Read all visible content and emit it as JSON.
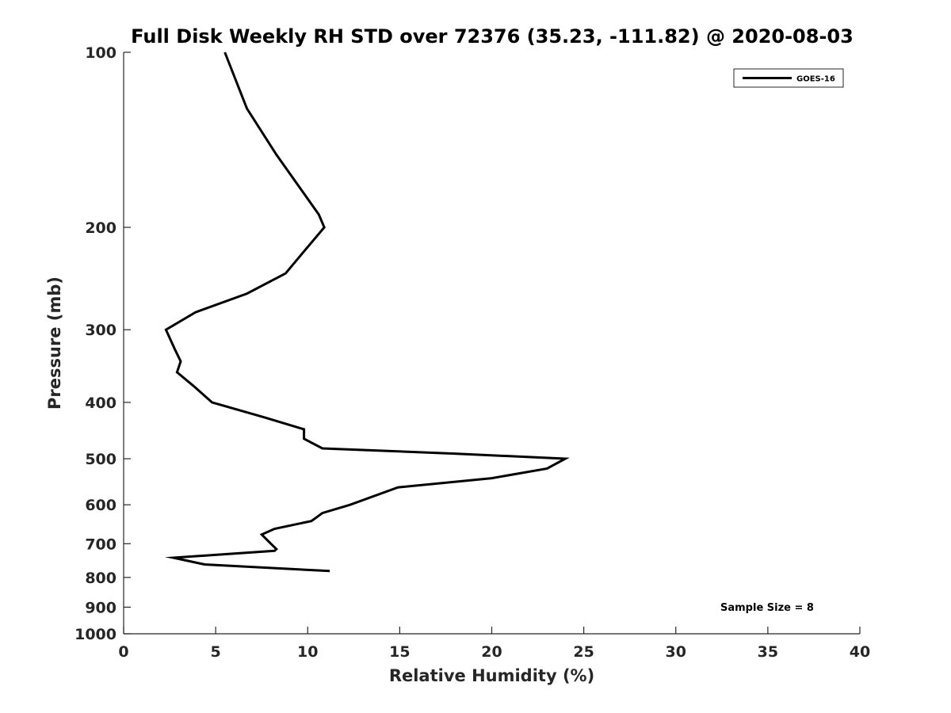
{
  "chart_data": {
    "type": "line",
    "title": "Full Disk Weekly RH STD over 72376 (35.23, -111.82) @ 2020-08-03",
    "xlabel": "Relative Humidity (%)",
    "ylabel": "Pressure (mb)",
    "xlim": [
      0,
      40
    ],
    "ylim": [
      100,
      1000
    ],
    "y_scale": "log",
    "y_reversed": true,
    "x_ticks": [
      0,
      5,
      10,
      15,
      20,
      25,
      30,
      35,
      40
    ],
    "x_tick_labels": [
      "0",
      "5",
      "10",
      "15",
      "20",
      "25",
      "30",
      "35",
      "40"
    ],
    "y_ticks": [
      100,
      200,
      300,
      400,
      500,
      600,
      700,
      800,
      900,
      1000
    ],
    "y_tick_labels": [
      "100",
      "200",
      "300",
      "400",
      "500",
      "600",
      "700",
      "800",
      "900",
      "1000"
    ],
    "grid": false,
    "legend_placement": "top-right",
    "series": [
      {
        "name": "GOES-16",
        "color": "#000000",
        "points": [
          {
            "x": 5.5,
            "p": 100
          },
          {
            "x": 6.7,
            "p": 125
          },
          {
            "x": 8.3,
            "p": 150
          },
          {
            "x": 9.8,
            "p": 175
          },
          {
            "x": 10.6,
            "p": 190
          },
          {
            "x": 10.9,
            "p": 200
          },
          {
            "x": 9.8,
            "p": 220
          },
          {
            "x": 8.8,
            "p": 240
          },
          {
            "x": 6.7,
            "p": 260
          },
          {
            "x": 3.9,
            "p": 280
          },
          {
            "x": 2.3,
            "p": 300
          },
          {
            "x": 2.8,
            "p": 325
          },
          {
            "x": 3.1,
            "p": 340
          },
          {
            "x": 2.9,
            "p": 355
          },
          {
            "x": 3.8,
            "p": 375
          },
          {
            "x": 4.8,
            "p": 400
          },
          {
            "x": 7.7,
            "p": 425
          },
          {
            "x": 9.8,
            "p": 445
          },
          {
            "x": 9.8,
            "p": 462
          },
          {
            "x": 10.8,
            "p": 480
          },
          {
            "x": 18.0,
            "p": 490
          },
          {
            "x": 24.0,
            "p": 500
          },
          {
            "x": 23.0,
            "p": 520
          },
          {
            "x": 20.0,
            "p": 540
          },
          {
            "x": 14.9,
            "p": 560
          },
          {
            "x": 12.3,
            "p": 600
          },
          {
            "x": 10.8,
            "p": 620
          },
          {
            "x": 10.5,
            "p": 630
          },
          {
            "x": 10.2,
            "p": 640
          },
          {
            "x": 8.2,
            "p": 660
          },
          {
            "x": 7.5,
            "p": 675
          },
          {
            "x": 8.0,
            "p": 700
          },
          {
            "x": 8.3,
            "p": 715
          },
          {
            "x": 8.2,
            "p": 720
          },
          {
            "x": 2.7,
            "p": 740
          },
          {
            "x": 4.4,
            "p": 760
          },
          {
            "x": 11.2,
            "p": 780
          }
        ]
      }
    ],
    "annotations": [
      {
        "text": "Sample Size = 8",
        "position": "bottom-right"
      }
    ]
  }
}
